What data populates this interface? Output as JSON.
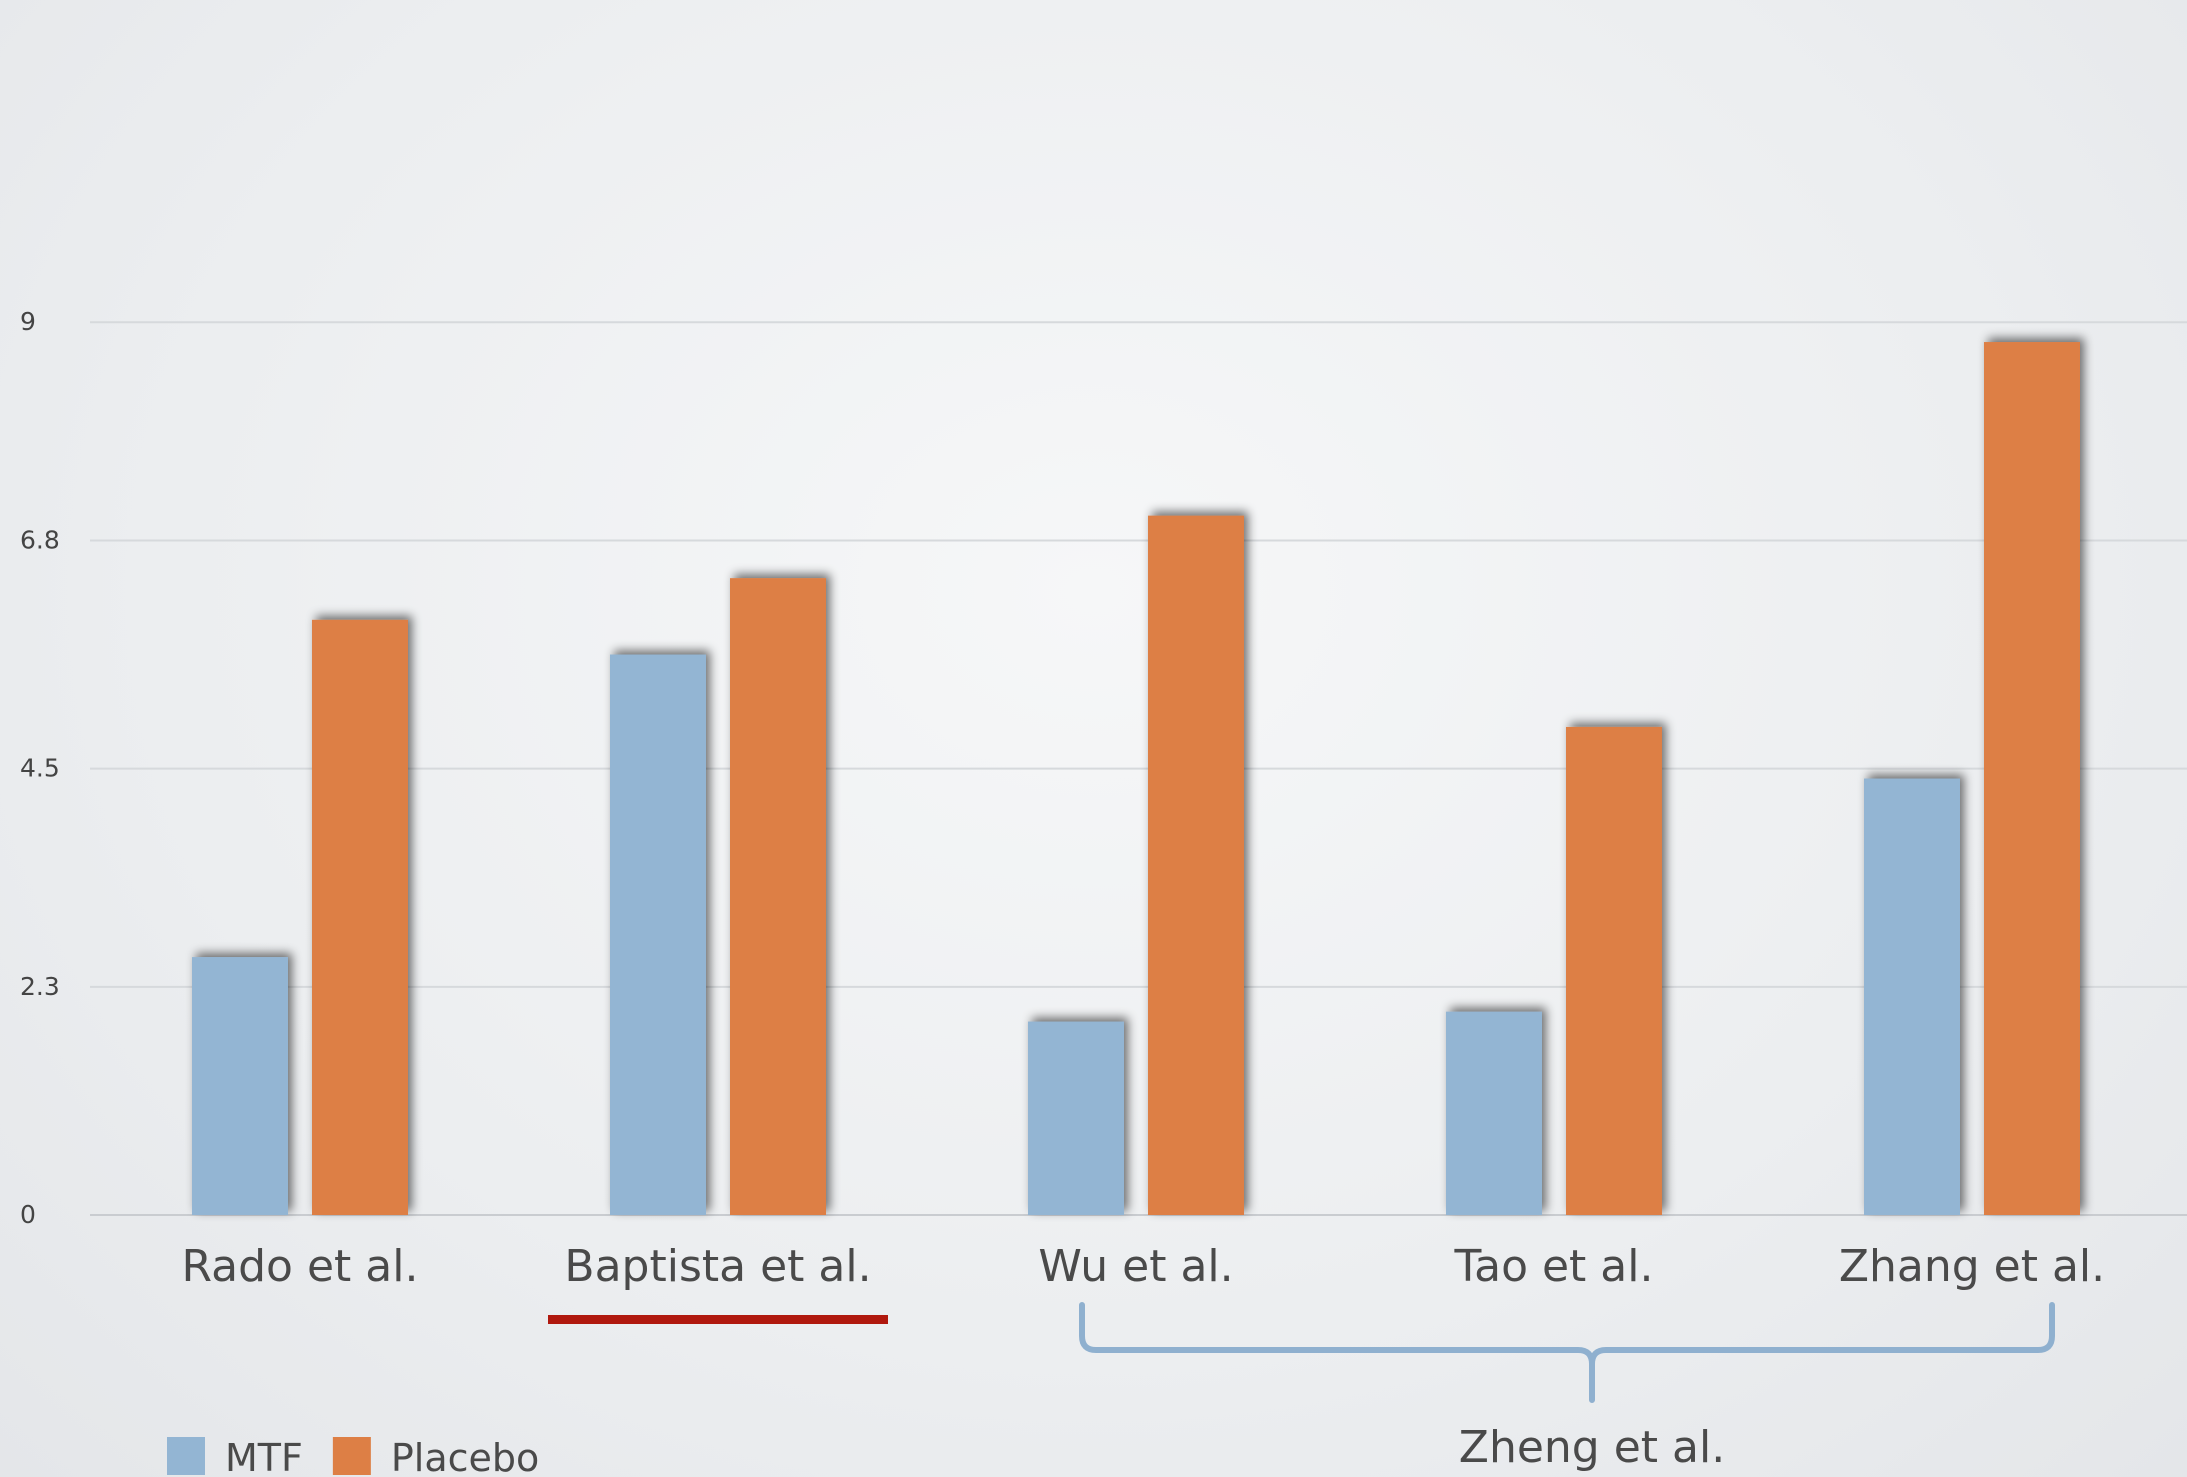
{
  "chart_data": {
    "type": "bar",
    "categories": [
      "Rado et al.",
      "Baptista et al.",
      "Wu et al.",
      "Tao et al.",
      "Zhang et al."
    ],
    "series": [
      {
        "name": "MTF",
        "color": "#93b5d3",
        "values": [
          2.6,
          5.65,
          1.95,
          2.05,
          4.4
        ]
      },
      {
        "name": "Placebo",
        "color": "#dd7f45",
        "values": [
          6.0,
          6.42,
          7.05,
          4.92,
          8.8
        ]
      }
    ],
    "yticks": [
      "0",
      "2.3",
      "4.5",
      "6.8",
      "9"
    ],
    "ylim": [
      0,
      9.2
    ],
    "grid": true,
    "legend_position": "bottom-left",
    "highlighted_category": "Baptista et al.",
    "highlight_color": "#b0180e",
    "group_bracket": {
      "label": "Zheng et al.",
      "from_category": "Wu et al.",
      "to_category": "Zhang et al.",
      "color": "#8fb0cf"
    }
  }
}
